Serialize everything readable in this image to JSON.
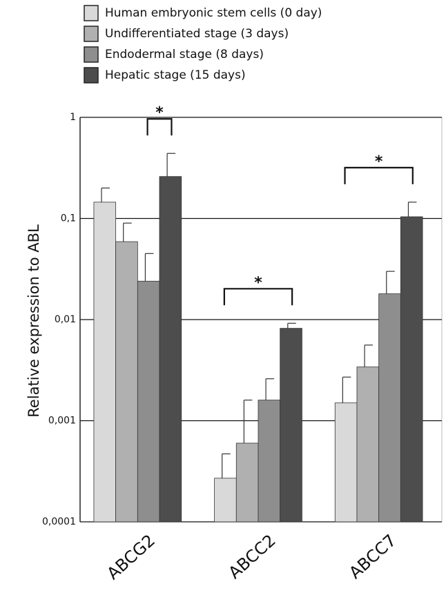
{
  "chart_data": {
    "type": "bar",
    "y_label": "Relative expression to ABL",
    "categories": [
      "ABCG2",
      "ABCC2",
      "ABCC7"
    ],
    "log_scale": true,
    "grid": true,
    "legend": "top",
    "ylim": [
      0.0001,
      1
    ],
    "yticks": [
      {
        "value": 0.0001,
        "label": "0,0001"
      },
      {
        "value": 0.001,
        "label": "0,001"
      },
      {
        "value": 0.01,
        "label": "0,01"
      },
      {
        "value": 0.1,
        "label": "0,1"
      },
      1
    ],
    "series": [
      {
        "name": "Human embryonic stem cells (0 day)",
        "color": "#d9d9d9",
        "values": [
          0.145,
          0.00027,
          0.0015
        ],
        "errors": [
          0.055,
          0.0002,
          0.0012
        ]
      },
      {
        "name": "Undifferentiated stage (3 days)",
        "color": "#b0b0b0",
        "values": [
          0.059,
          0.0006,
          0.0034
        ],
        "errors": [
          0.031,
          0.001,
          0.0022
        ]
      },
      {
        "name": "Endodermal stage (8 days)",
        "color": "#8e8e8e",
        "values": [
          0.024,
          0.0016,
          0.018
        ],
        "errors": [
          0.021,
          0.001,
          0.012
        ]
      },
      {
        "name": "Hepatic stage (15 days)",
        "color": "#4d4d4d",
        "values": [
          0.26,
          0.0082,
          0.104
        ],
        "errors": [
          0.18,
          0.001,
          0.041
        ]
      }
    ],
    "annotations": [
      {
        "text": "*",
        "category": 0,
        "from": 2,
        "to": 3
      },
      {
        "text": "*",
        "category": 1,
        "from": 0,
        "to": 3
      },
      {
        "text": "*",
        "category": 2,
        "from": 0,
        "to": 3
      }
    ]
  }
}
